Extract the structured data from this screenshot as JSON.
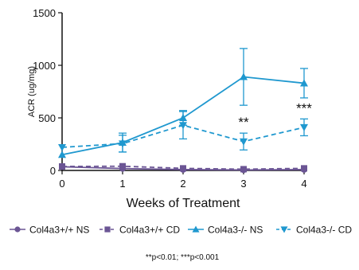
{
  "chart_data": {
    "type": "line",
    "xlabel": "Weeks of Treatment",
    "ylabel": "ACR (ug/mg)",
    "x": [
      0,
      1,
      2,
      3,
      4
    ],
    "xlim": [
      0,
      4
    ],
    "ylim": [
      0,
      1500
    ],
    "x_ticks": [
      "0",
      "1",
      "2",
      "3",
      "4"
    ],
    "y_ticks": [
      "0",
      "500",
      "1000",
      "1500"
    ],
    "grid": false,
    "legend_position": "bottom",
    "series": [
      {
        "name": "Col4a3+/+ NS",
        "color": "#6b5594",
        "marker": "circle",
        "line": "solid",
        "values": [
          35,
          18,
          8,
          5,
          8
        ],
        "error": [
          0,
          0,
          0,
          0,
          0
        ]
      },
      {
        "name": "Col4a3+/+ CD",
        "color": "#6b5594",
        "marker": "square",
        "line": "dashed",
        "values": [
          38,
          40,
          20,
          12,
          20
        ],
        "error": [
          0,
          0,
          0,
          0,
          0
        ]
      },
      {
        "name": "Col4a3-/- NS",
        "color": "#1f98cf",
        "marker": "triangle-up",
        "line": "solid",
        "values": [
          150,
          265,
          500,
          890,
          830
        ],
        "error": [
          0,
          90,
          70,
          270,
          140
        ]
      },
      {
        "name": "Col4a3-/- CD",
        "color": "#1f98cf",
        "marker": "triangle-down",
        "line": "dashed",
        "values": [
          220,
          255,
          430,
          275,
          410
        ],
        "error": [
          0,
          80,
          130,
          80,
          80
        ]
      }
    ],
    "annotations": [
      {
        "text": "**",
        "x": 3
      },
      {
        "text": "***",
        "x": 4
      }
    ],
    "footnote": "**p<0.01;   ***p<0.001"
  }
}
